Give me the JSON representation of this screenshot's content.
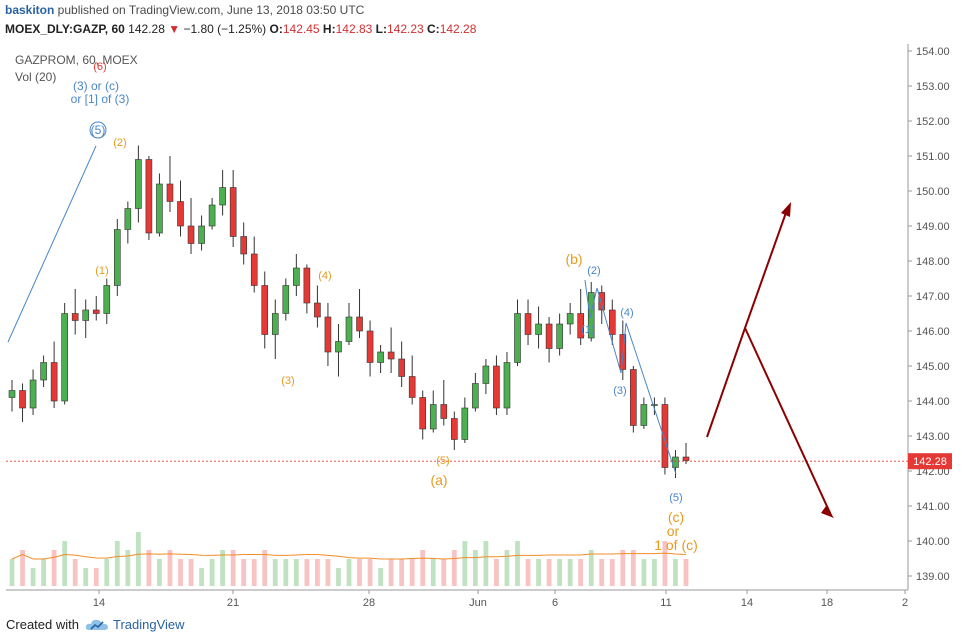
{
  "header": {
    "author": "baskiton",
    "published": " published on TradingView.com, June 13, 2018 03:50 UTC",
    "symbol": "MOEX_DLY:GAZP, 60",
    "last": "142.28",
    "change": "−1.80 (−1.25%)",
    "o_label": "O:",
    "o_value": "142.45",
    "h_label": "H:",
    "h_value": "142.83",
    "l_label": "L:",
    "l_value": "142.23",
    "c_label": "C:",
    "c_value": "142.28"
  },
  "legend": {
    "instrument": "GAZPROM, 60, MOEX",
    "volume": "Vol (20)"
  },
  "footer": {
    "created_with": "Created with",
    "brand": "TradingView"
  },
  "colors": {
    "up": "#4caf50",
    "down": "#e53935",
    "orange": "#e69a1f",
    "blue": "#4a86c8",
    "arrow": "#8b0000",
    "price_tag": "#e53935"
  },
  "chart_data": {
    "type": "candlestick",
    "y_ticks": [
      "154.00",
      "153.00",
      "152.00",
      "151.00",
      "150.00",
      "149.00",
      "148.00",
      "147.00",
      "146.00",
      "145.00",
      "144.00",
      "143.00",
      "142.00",
      "141.00",
      "140.00",
      "139.00"
    ],
    "ylim": [
      138.6,
      154.2
    ],
    "x_ticks": [
      "14",
      "21",
      "28",
      "Jun",
      "6",
      "11",
      "14",
      "18",
      "2"
    ],
    "last_price_label": "142.28",
    "series": [
      {
        "values": [
          [
            144.1,
            144.6,
            143.7,
            144.3
          ],
          [
            144.3,
            144.5,
            143.4,
            143.8
          ],
          [
            143.8,
            144.9,
            143.6,
            144.6
          ],
          [
            144.6,
            145.3,
            144.4,
            145.1
          ],
          [
            145.1,
            145.7,
            143.8,
            144.0
          ],
          [
            144.0,
            146.8,
            143.9,
            146.5
          ],
          [
            146.5,
            147.2,
            145.9,
            146.3
          ],
          [
            146.3,
            146.9,
            145.8,
            146.6
          ],
          [
            146.6,
            147.0,
            146.3,
            146.5
          ],
          [
            146.5,
            147.5,
            146.2,
            147.3
          ],
          [
            147.3,
            149.2,
            147.0,
            148.9
          ],
          [
            148.9,
            149.7,
            148.5,
            149.5
          ],
          [
            149.5,
            151.3,
            149.1,
            150.9
          ],
          [
            150.9,
            151.0,
            148.6,
            148.8
          ],
          [
            148.8,
            150.5,
            148.7,
            150.2
          ],
          [
            150.2,
            151.0,
            149.4,
            149.7
          ],
          [
            149.7,
            150.3,
            148.7,
            149.0
          ],
          [
            149.0,
            149.8,
            148.2,
            148.5
          ],
          [
            148.5,
            149.3,
            148.3,
            149.0
          ],
          [
            149.0,
            149.8,
            148.9,
            149.6
          ],
          [
            149.6,
            150.6,
            149.3,
            150.1
          ],
          [
            150.1,
            150.6,
            148.4,
            148.7
          ],
          [
            148.7,
            149.1,
            147.9,
            148.2
          ],
          [
            148.2,
            148.7,
            147.1,
            147.3
          ],
          [
            147.3,
            147.7,
            145.5,
            145.9
          ],
          [
            145.9,
            146.9,
            145.2,
            146.5
          ],
          [
            146.5,
            147.5,
            146.3,
            147.3
          ],
          [
            147.3,
            148.2,
            147.0,
            147.8
          ],
          [
            147.8,
            147.9,
            146.5,
            146.8
          ],
          [
            146.8,
            147.3,
            146.1,
            146.4
          ],
          [
            146.4,
            146.8,
            145.0,
            145.4
          ],
          [
            145.4,
            146.2,
            144.7,
            145.7
          ],
          [
            145.7,
            146.8,
            145.6,
            146.4
          ],
          [
            146.4,
            147.2,
            145.8,
            146.0
          ],
          [
            146.0,
            146.3,
            144.7,
            145.1
          ],
          [
            145.1,
            145.6,
            144.8,
            145.4
          ],
          [
            145.4,
            146.1,
            144.8,
            145.2
          ],
          [
            145.2,
            145.7,
            144.4,
            144.7
          ],
          [
            144.7,
            145.3,
            143.9,
            144.1
          ],
          [
            144.1,
            144.3,
            142.9,
            143.2
          ],
          [
            143.2,
            144.3,
            143.1,
            143.9
          ],
          [
            143.9,
            144.6,
            143.3,
            143.5
          ],
          [
            143.5,
            143.7,
            142.6,
            142.9
          ],
          [
            142.9,
            144.1,
            142.8,
            143.8
          ],
          [
            143.8,
            144.8,
            143.7,
            144.5
          ],
          [
            144.5,
            145.2,
            144.2,
            145.0
          ],
          [
            145.0,
            145.3,
            143.6,
            143.8
          ],
          [
            143.8,
            145.4,
            143.6,
            145.1
          ],
          [
            145.1,
            146.9,
            145.0,
            146.5
          ],
          [
            146.5,
            146.9,
            145.6,
            145.9
          ],
          [
            145.9,
            146.7,
            145.5,
            146.2
          ],
          [
            146.2,
            146.4,
            145.1,
            145.5
          ],
          [
            145.5,
            146.5,
            145.3,
            146.2
          ],
          [
            146.2,
            146.8,
            145.9,
            146.5
          ],
          [
            146.5,
            147.2,
            145.6,
            145.8
          ],
          [
            145.8,
            147.4,
            145.7,
            147.1
          ],
          [
            147.1,
            147.3,
            146.2,
            146.6
          ],
          [
            146.6,
            146.9,
            145.6,
            145.9
          ],
          [
            145.9,
            146.3,
            144.6,
            144.9
          ],
          [
            144.9,
            145.0,
            143.1,
            143.3
          ],
          [
            143.3,
            144.1,
            143.2,
            143.9
          ],
          [
            143.9,
            144.1,
            143.6,
            143.9
          ],
          [
            143.9,
            144.1,
            141.9,
            142.1
          ],
          [
            142.1,
            142.6,
            141.8,
            142.4
          ],
          [
            142.4,
            142.8,
            142.2,
            142.3
          ]
        ]
      },
      {
        "name": "Vol (20)",
        "values": [
          3,
          4,
          2,
          3,
          4,
          5,
          3,
          2,
          2,
          3,
          5,
          4,
          6,
          4,
          3,
          4,
          3,
          3,
          2,
          3,
          4,
          4,
          3,
          3,
          4,
          3,
          3,
          3,
          3,
          3,
          3,
          2,
          3,
          3,
          3,
          2,
          3,
          3,
          3,
          4,
          3,
          3,
          4,
          5,
          4,
          5,
          3,
          4,
          5,
          3,
          3,
          3,
          3,
          3,
          3,
          4,
          3,
          3,
          4,
          4,
          3,
          3,
          5,
          3,
          3
        ]
      }
    ],
    "annotations": [
      {
        "text": "(5)",
        "color": "blue"
      },
      {
        "text": "(2)",
        "color": "orange"
      },
      {
        "text": "(1)",
        "color": "orange"
      },
      {
        "text": "(3)",
        "color": "orange"
      },
      {
        "text": "(4)",
        "color": "orange"
      },
      {
        "text": "(5)",
        "color": "orange"
      },
      {
        "text": "(a)",
        "color": "orange"
      },
      {
        "text": "(b)",
        "color": "orange"
      },
      {
        "text": "(2)",
        "color": "blue"
      },
      {
        "text": "(1)",
        "color": "blue"
      },
      {
        "text": "(4)",
        "color": "blue"
      },
      {
        "text": "(3)",
        "color": "blue"
      },
      {
        "text": "(5)",
        "color": "blue"
      },
      {
        "text": "(c)",
        "color": "orange"
      },
      {
        "text": "or",
        "color": "orange"
      },
      {
        "text": "1 of (c)",
        "color": "orange"
      },
      {
        "text": "(6)",
        "color": "red"
      },
      {
        "text": "(3) or (c)",
        "color": "blue"
      },
      {
        "text": "or [1] of (3)",
        "color": "blue"
      }
    ]
  }
}
